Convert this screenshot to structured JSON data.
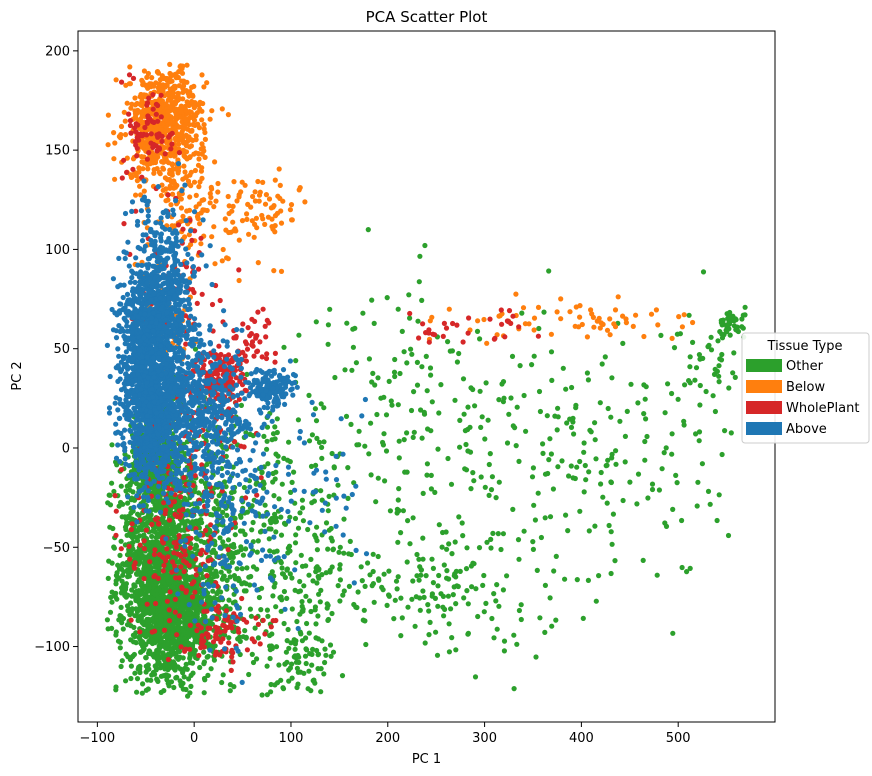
{
  "chart_data": {
    "type": "scatter",
    "title": "PCA Scatter Plot",
    "xlabel": "PC 1",
    "ylabel": "PC 2",
    "xlim": [
      -120,
      600
    ],
    "ylim": [
      -138,
      210
    ],
    "xticks": [
      -100,
      0,
      100,
      200,
      300,
      400,
      500
    ],
    "yticks": [
      -100,
      -50,
      0,
      50,
      100,
      150,
      200
    ],
    "xtick_labels": [
      "−100",
      "0",
      "100",
      "200",
      "300",
      "400",
      "500"
    ],
    "ytick_labels": [
      "−100",
      "−50",
      "0",
      "50",
      "100",
      "150",
      "200"
    ],
    "grid": false,
    "legend": {
      "title": "Tissue Type",
      "placement": "right, outside plot",
      "entries": [
        "Other",
        "Below",
        "WholePlant",
        "Above"
      ]
    },
    "series": [
      {
        "name": "Other",
        "color": "#2ca02c",
        "clusters": [
          {
            "cx": -35,
            "cy": -60,
            "sx": 22,
            "sy": 32,
            "n": 1500
          },
          {
            "cx": -15,
            "cy": -85,
            "sx": 20,
            "sy": 12,
            "n": 600
          },
          {
            "cx": -40,
            "cy": -5,
            "sx": 14,
            "sy": 14,
            "n": 350
          },
          {
            "cx": 20,
            "cy": -50,
            "sx": 28,
            "sy": 35,
            "n": 350
          },
          {
            "cx": 90,
            "cy": -60,
            "sx": 40,
            "sy": 35,
            "n": 300
          },
          {
            "cx": 110,
            "cy": -105,
            "sx": 20,
            "sy": 8,
            "n": 60
          },
          {
            "cx": 260,
            "cy": -10,
            "sx": 90,
            "sy": 40,
            "n": 230
          },
          {
            "cx": 250,
            "cy": -70,
            "sx": 60,
            "sy": 14,
            "n": 140
          },
          {
            "cx": 440,
            "cy": -10,
            "sx": 55,
            "sy": 30,
            "n": 110
          },
          {
            "cx": 530,
            "cy": 40,
            "sx": 25,
            "sy": 18,
            "n": 60
          },
          {
            "cx": 555,
            "cy": 62,
            "sx": 6,
            "sy": 3,
            "n": 40
          },
          {
            "cx": 230,
            "cy": 40,
            "sx": 60,
            "sy": 20,
            "n": 50
          }
        ]
      },
      {
        "name": "Below",
        "color": "#ff7f0e",
        "clusters": [
          {
            "cx": -30,
            "cy": 163,
            "sx": 20,
            "sy": 14,
            "n": 700
          },
          {
            "cx": 70,
            "cy": 122,
            "sx": 18,
            "sy": 8,
            "n": 60
          },
          {
            "cx": -10,
            "cy": 120,
            "sx": 25,
            "sy": 15,
            "n": 90
          },
          {
            "cx": -30,
            "cy": 65,
            "sx": 15,
            "sy": 15,
            "n": 60
          },
          {
            "cx": 400,
            "cy": 64,
            "sx": 50,
            "sy": 5,
            "n": 50
          },
          {
            "cx": 290,
            "cy": 62,
            "sx": 25,
            "sy": 6,
            "n": 15
          },
          {
            "cx": 40,
            "cy": 105,
            "sx": 30,
            "sy": 12,
            "n": 25
          }
        ]
      },
      {
        "name": "WholePlant",
        "color": "#d62728",
        "clusters": [
          {
            "cx": -45,
            "cy": 160,
            "sx": 12,
            "sy": 12,
            "n": 70
          },
          {
            "cx": 30,
            "cy": 35,
            "sx": 12,
            "sy": 8,
            "n": 140
          },
          {
            "cx": -20,
            "cy": -45,
            "sx": 25,
            "sy": 25,
            "n": 180
          },
          {
            "cx": 25,
            "cy": -92,
            "sx": 20,
            "sy": 7,
            "n": 90
          },
          {
            "cx": -20,
            "cy": 90,
            "sx": 25,
            "sy": 20,
            "n": 70
          },
          {
            "cx": 60,
            "cy": 52,
            "sx": 15,
            "sy": 8,
            "n": 40
          },
          {
            "cx": 270,
            "cy": 63,
            "sx": 40,
            "sy": 5,
            "n": 30
          },
          {
            "cx": 0,
            "cy": 10,
            "sx": 30,
            "sy": 20,
            "n": 80
          }
        ]
      },
      {
        "name": "Above",
        "color": "#1f77b4",
        "clusters": [
          {
            "cx": -45,
            "cy": 40,
            "sx": 16,
            "sy": 25,
            "n": 1300
          },
          {
            "cx": -30,
            "cy": 80,
            "sx": 15,
            "sy": 20,
            "n": 450
          },
          {
            "cx": 10,
            "cy": 20,
            "sx": 25,
            "sy": 18,
            "n": 450
          },
          {
            "cx": 80,
            "cy": 30,
            "sx": 12,
            "sy": 5,
            "n": 140
          },
          {
            "cx": 30,
            "cy": -30,
            "sx": 25,
            "sy": 30,
            "n": 220
          },
          {
            "cx": -40,
            "cy": 5,
            "sx": 15,
            "sy": 15,
            "n": 300
          },
          {
            "cx": 130,
            "cy": -20,
            "sx": 40,
            "sy": 25,
            "n": 50
          }
        ]
      }
    ]
  }
}
